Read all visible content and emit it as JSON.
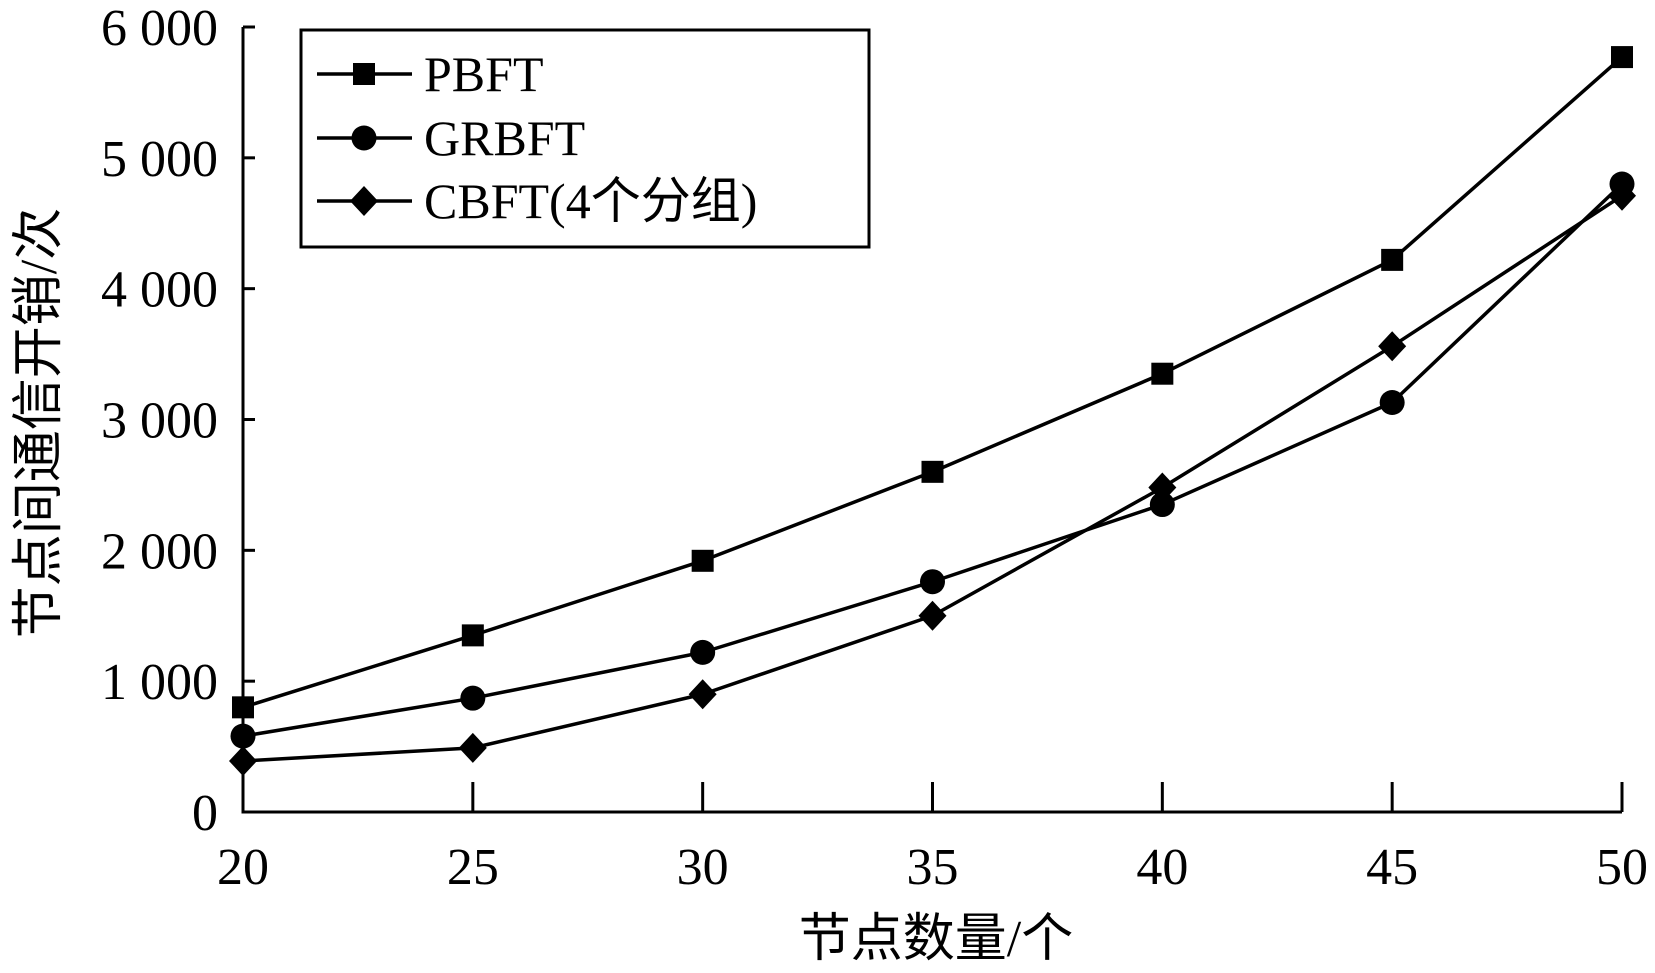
{
  "chart_data": {
    "type": "line",
    "x": [
      20,
      25,
      30,
      35,
      40,
      45,
      50
    ],
    "x_tick_labels": [
      "20",
      "25",
      "30",
      "35",
      "40",
      "45",
      "50"
    ],
    "xlim": [
      20,
      50
    ],
    "ylim": [
      0,
      6000
    ],
    "y_ticks": [
      0,
      1000,
      2000,
      3000,
      4000,
      5000,
      6000
    ],
    "y_tick_labels": [
      "0",
      "1 000",
      "2 000",
      "3 000",
      "4 000",
      "5 000",
      "6 000"
    ],
    "xlabel": "节点数量/个",
    "ylabel": "节点间通信开销/次",
    "grid": false,
    "legend_position": "top-left",
    "series": [
      {
        "name": "PBFT",
        "marker": "square",
        "color": "#000000",
        "values": [
          800,
          1350,
          1920,
          2600,
          3350,
          4220,
          5770
        ]
      },
      {
        "name": "GRBFT",
        "marker": "circle",
        "color": "#000000",
        "values": [
          580,
          870,
          1220,
          1760,
          2350,
          3130,
          4800
        ]
      },
      {
        "name": "CBFT(4个分组)",
        "marker": "diamond",
        "color": "#000000",
        "values": [
          390,
          490,
          900,
          1500,
          2480,
          3560,
          4710
        ]
      }
    ]
  }
}
